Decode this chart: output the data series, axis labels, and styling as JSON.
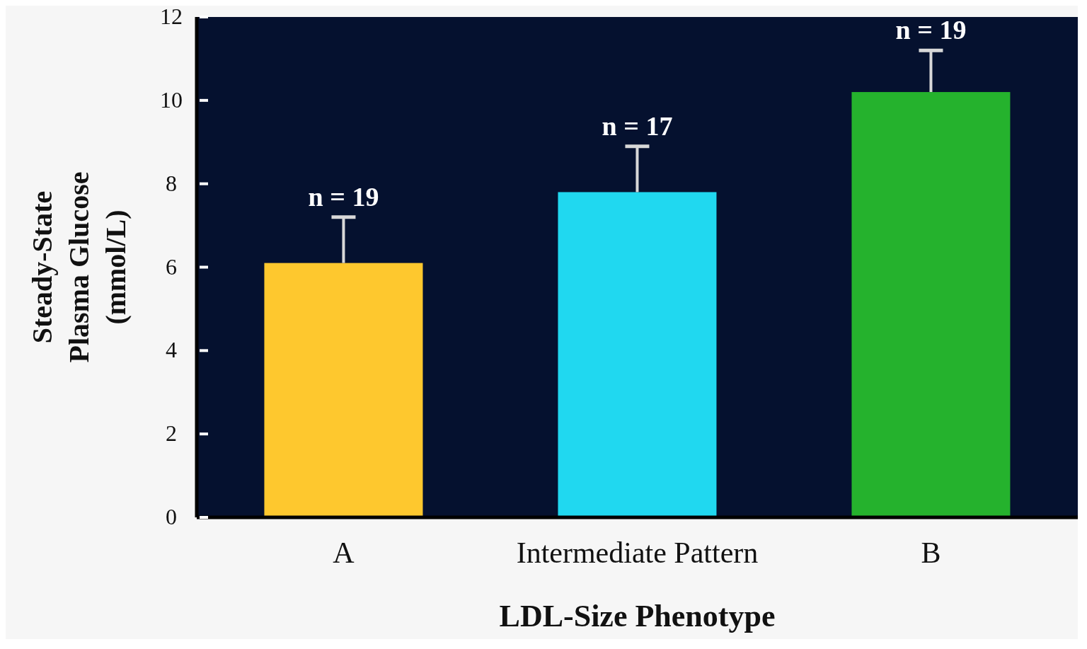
{
  "chart_data": {
    "type": "bar",
    "xlabel": "LDL-Size Phenotype",
    "ylabel": "Steady-State\nPlasma Glucose\n(mmol/L)",
    "categories": [
      "A",
      "Intermediate Pattern",
      "B"
    ],
    "values": [
      6.1,
      7.8,
      10.2
    ],
    "colors": [
      "#fec82e",
      "#20d8f0",
      "#25b22d"
    ],
    "errors": [
      [
        6.1,
        7.2
      ],
      [
        7.8,
        8.9
      ],
      [
        10.2,
        11.2
      ]
    ],
    "ylim": [
      0,
      12
    ],
    "yticks": [
      0,
      2,
      4,
      6,
      8,
      10,
      12
    ],
    "grid": false,
    "legend": false,
    "annotations": [
      {
        "text": "n = 19",
        "x": "A",
        "y": 7.2
      },
      {
        "text": "n = 17",
        "x": "Intermediate Pattern",
        "y": 8.9
      },
      {
        "text": "n = 19",
        "x": "B",
        "y": 11.2
      }
    ]
  }
}
